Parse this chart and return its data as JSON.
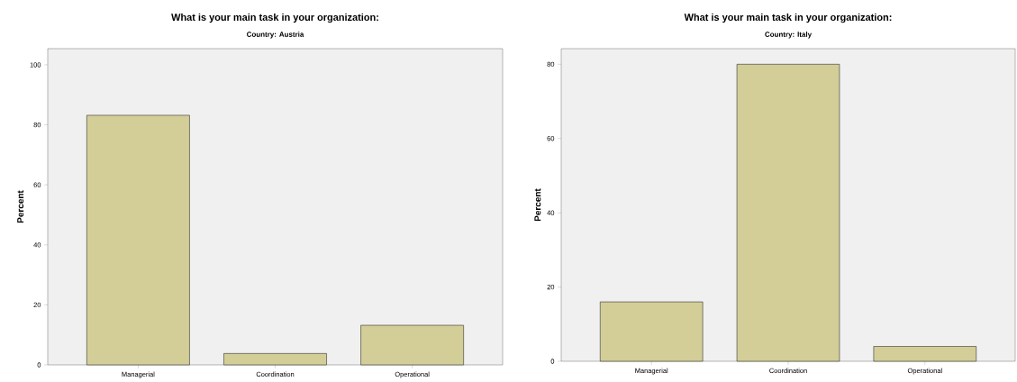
{
  "chart_data": [
    {
      "type": "bar",
      "title": "What is your main task in your organization:",
      "subtitle": "Country: Austria",
      "ylabel": "Percent",
      "categories": [
        "Managerial",
        "Coordination",
        "Operational"
      ],
      "values": [
        83.2,
        3.8,
        13.2
      ],
      "color": "#d3ce97",
      "ylim": [
        0,
        105.4
      ],
      "yticks": [
        0,
        20,
        40,
        60,
        80,
        100
      ]
    },
    {
      "type": "bar",
      "title": "What is your main task in your organization:",
      "subtitle": "Country: Italy",
      "ylabel": "Percent",
      "categories": [
        "Managerial",
        "Coordination",
        "Operational"
      ],
      "values": [
        16,
        80,
        4
      ],
      "color": "#d3ce97",
      "ylim": [
        0,
        84.2
      ],
      "yticks": [
        0,
        20,
        40,
        60,
        80
      ]
    }
  ]
}
